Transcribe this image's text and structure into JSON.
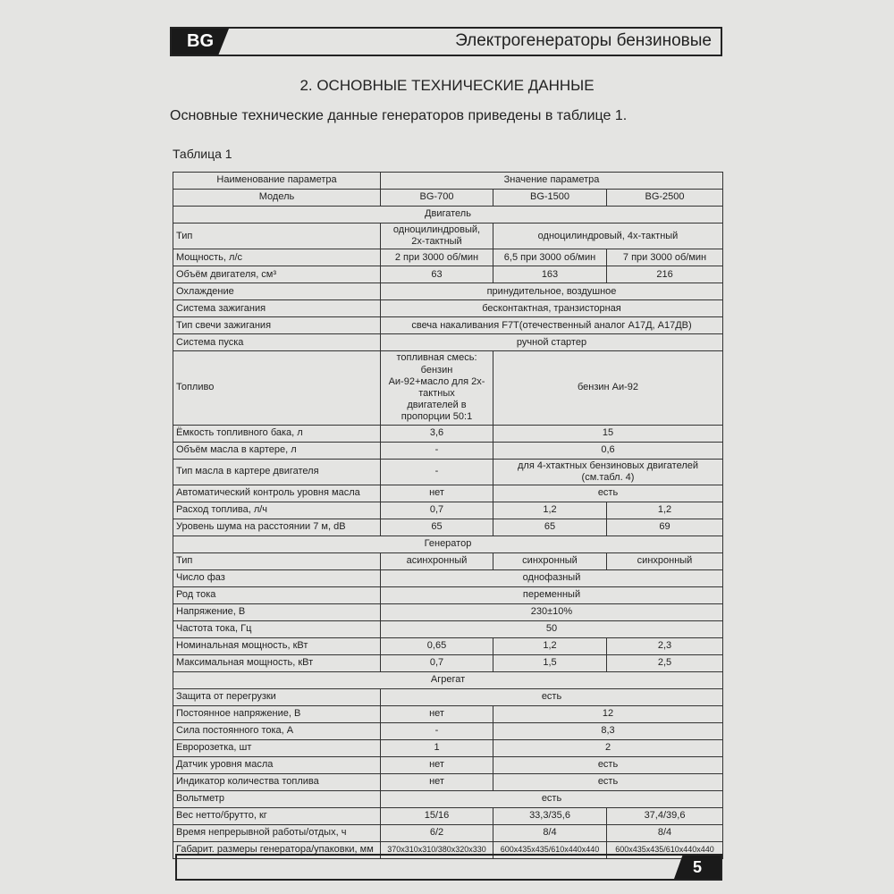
{
  "header": {
    "badge": "BG",
    "title": "Электрогенераторы бензиновые"
  },
  "section_title": "2. ОСНОВНЫЕ ТЕХНИЧЕСКИЕ ДАННЫЕ",
  "intro": "Основные технические данные генераторов приведены в таблице 1.",
  "table": {
    "caption": "Таблица 1",
    "rows": [
      [
        "Наименование параметра",
        "Значение параметра"
      ],
      [
        "Модель",
        "BG-700",
        "BG-1500",
        "BG-2500"
      ],
      [
        "Двигатель"
      ],
      [
        "Тип",
        "одноцилиндровый,\n2х-тактный",
        "одноцилиндровый, 4х-тактный"
      ],
      [
        "Мощность, л/с",
        "2 при 3000 об/мин",
        "6,5 при 3000 об/мин",
        "7 при 3000 об/мин"
      ],
      [
        "Объём двигателя, см³",
        "63",
        "163",
        "216"
      ],
      [
        "Охлаждение",
        "принудительное, воздушное"
      ],
      [
        "Система зажигания",
        "бесконтактная, транзисторная"
      ],
      [
        "Тип свечи зажигания",
        "свеча накаливания F7T(отечественный аналог А17Д, А17ДВ)"
      ],
      [
        "Система пуска",
        "ручной стартер"
      ],
      [
        "Топливо",
        "топливная смесь: бензин\nАи-92+масло для 2х-тактных\nдвигателей в пропорции 50:1",
        "бензин Аи-92"
      ],
      [
        "Ёмкость топливного бака, л",
        "3,6",
        "15"
      ],
      [
        "Объём масла в картере, л",
        "-",
        "0,6"
      ],
      [
        "Тип масла в картере двигателя",
        "-",
        "для 4-хтактных бензиновых двигателей (см.табл. 4)"
      ],
      [
        "Автоматический контроль уровня масла",
        "нет",
        "есть"
      ],
      [
        "Расход топлива, л/ч",
        "0,7",
        "1,2",
        "1,2"
      ],
      [
        "Уровень шума на расстоянии 7 м, dB",
        "65",
        "65",
        "69"
      ],
      [
        "Генератор"
      ],
      [
        "Тип",
        "асинхронный",
        "синхронный",
        "синхронный"
      ],
      [
        "Число фаз",
        "однофазный"
      ],
      [
        "Род тока",
        "переменный"
      ],
      [
        "Напряжение, В",
        "230±10%"
      ],
      [
        "Частота тока, Гц",
        "50"
      ],
      [
        "Номинальная мощность, кВт",
        "0,65",
        "1,2",
        "2,3"
      ],
      [
        "Максимальная мощность, кВт",
        "0,7",
        "1,5",
        "2,5"
      ],
      [
        "Агрегат"
      ],
      [
        "Защита от перегрузки",
        "есть"
      ],
      [
        "Постоянное напряжение, В",
        "нет",
        "12"
      ],
      [
        "Сила постоянного  тока, А",
        "-",
        "8,3"
      ],
      [
        "Евророзетка, шт",
        "1",
        "2"
      ],
      [
        "Датчик уровня масла",
        "нет",
        "есть"
      ],
      [
        "Индикатор количества топлива",
        "нет",
        "есть"
      ],
      [
        "Вольтметр",
        "есть"
      ],
      [
        "Вес нетто/брутто, кг",
        "15/16",
        "33,3/35,6",
        "37,4/39,6"
      ],
      [
        "Время непрерывной работы/отдых, ч",
        "6/2",
        "8/4",
        "8/4"
      ],
      [
        "Габарит. размеры генератора/упаковки, мм",
        "370x310x310/380x320x330",
        "600x435x435/610x440x440",
        "600x435x435/610x440x440"
      ]
    ]
  },
  "footer": {
    "page": "5"
  }
}
